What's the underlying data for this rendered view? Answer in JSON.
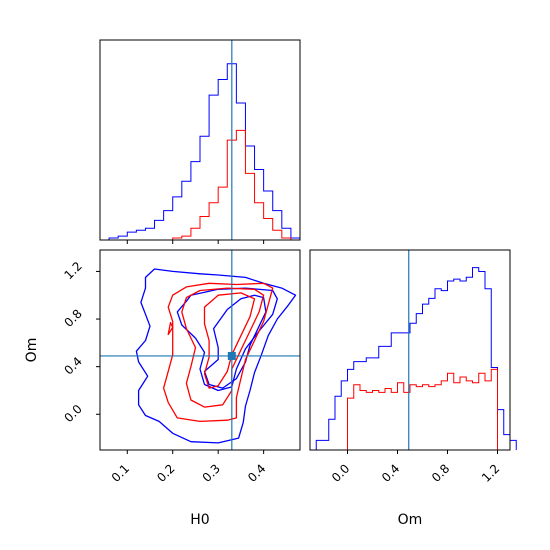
{
  "chart_data": {
    "type": "corner",
    "colors": {
      "blue": "#0000ff",
      "red": "#ff0000",
      "truth": "#1f77b4"
    },
    "params": [
      "H0",
      "Om"
    ],
    "axis_labels": {
      "x_bottom_left": "H0",
      "x_bottom_right": "Om",
      "y_left": "Om"
    },
    "truth": {
      "H0": 0.33,
      "Om": 0.49
    },
    "panels": {
      "h0_hist": {
        "xlim": [
          0.04,
          0.48
        ],
        "ticks": [
          0.1,
          0.2,
          0.3,
          0.4
        ],
        "bins": [
          0.05,
          0.07,
          0.09,
          0.11,
          0.13,
          0.15,
          0.17,
          0.19,
          0.21,
          0.23,
          0.25,
          0.27,
          0.29,
          0.31,
          0.33,
          0.35,
          0.37,
          0.39,
          0.41,
          0.43,
          0.45,
          0.47
        ],
        "series": [
          {
            "name": "",
            "color": "blue",
            "values": [
              0,
              0.01,
              0.02,
              0.04,
              0.05,
              0.06,
              0.1,
              0.15,
              0.22,
              0.3,
              0.4,
              0.53,
              0.74,
              0.82,
              0.9,
              0.7,
              0.48,
              0.36,
              0.25,
              0.15,
              0.06,
              0.01
            ]
          },
          {
            "name": "",
            "color": "red",
            "values": [
              0,
              0,
              0,
              0,
              0,
              0,
              0,
              0,
              0.01,
              0.02,
              0.06,
              0.12,
              0.19,
              0.27,
              0.51,
              0.56,
              0.34,
              0.19,
              0.11,
              0.05,
              0.01,
              0
            ]
          }
        ]
      },
      "om_hist": {
        "xlim": [
          -0.3,
          1.3
        ],
        "ticks": [
          0.0,
          0.4,
          0.8,
          1.2
        ],
        "tick_labels": [
          "0.0",
          "0.4",
          "0.8",
          "1.2"
        ],
        "bin_width": 0.05,
        "series": [
          {
            "name": "",
            "color": "blue",
            "start": -0.25,
            "values": [
              0.05,
              0.05,
              0.16,
              0.28,
              0.36,
              0.42,
              0.46,
              0.46,
              0.48,
              0.48,
              0.54,
              0.54,
              0.61,
              0.61,
              0.61,
              0.66,
              0.71,
              0.76,
              0.79,
              0.84,
              0.83,
              0.88,
              0.89,
              0.88,
              0.9,
              0.95,
              0.93,
              0.84,
              0.43,
              0.21,
              0.08,
              0.05
            ]
          },
          {
            "name": "",
            "color": "red",
            "start": 0.0,
            "values": [
              0.27,
              0.34,
              0.31,
              0.3,
              0.31,
              0.3,
              0.32,
              0.3,
              0.35,
              0.3,
              0.34,
              0.33,
              0.34,
              0.33,
              0.34,
              0.36,
              0.4,
              0.35,
              0.38,
              0.36,
              0.35,
              0.4,
              0.36,
              0.42
            ]
          }
        ]
      },
      "contour": {
        "xlim": [
          0.04,
          0.48
        ],
        "ylim": [
          -0.3,
          1.38
        ],
        "xticks": [
          0.1,
          0.2,
          0.3,
          0.4
        ],
        "yticks": [
          0.0,
          0.4,
          0.8,
          1.2
        ],
        "ytick_labels": [
          "0.0",
          "0.4",
          "0.8",
          "1.2"
        ],
        "contours": [
          {
            "color": "blue",
            "points": [
              [
                0.14,
                1.15
              ],
              [
                0.16,
                1.22
              ],
              [
                0.2,
                1.2
              ],
              [
                0.26,
                1.18
              ],
              [
                0.3,
                1.17
              ],
              [
                0.36,
                1.15
              ],
              [
                0.4,
                1.1
              ],
              [
                0.44,
                1.06
              ],
              [
                0.47,
                1.0
              ],
              [
                0.455,
                0.92
              ],
              [
                0.43,
                0.8
              ],
              [
                0.41,
                0.66
              ],
              [
                0.395,
                0.5
              ],
              [
                0.38,
                0.35
              ],
              [
                0.37,
                0.2
              ],
              [
                0.36,
                0.07
              ],
              [
                0.355,
                -0.07
              ],
              [
                0.345,
                -0.2
              ],
              [
                0.3,
                -0.24
              ],
              [
                0.24,
                -0.23
              ],
              [
                0.2,
                -0.16
              ],
              [
                0.17,
                -0.06
              ],
              [
                0.14,
                -0.01
              ],
              [
                0.125,
                0.08
              ],
              [
                0.125,
                0.2
              ],
              [
                0.145,
                0.32
              ],
              [
                0.125,
                0.44
              ],
              [
                0.12,
                0.53
              ],
              [
                0.14,
                0.62
              ],
              [
                0.15,
                0.74
              ],
              [
                0.14,
                0.84
              ],
              [
                0.13,
                0.94
              ],
              [
                0.14,
                1.06
              ],
              [
                0.14,
                1.15
              ]
            ]
          },
          {
            "color": "blue",
            "points": [
              [
                0.24,
                1.0
              ],
              [
                0.3,
                1.05
              ],
              [
                0.36,
                1.06
              ],
              [
                0.42,
                1.04
              ],
              [
                0.43,
                0.97
              ],
              [
                0.42,
                0.84
              ],
              [
                0.39,
                0.7
              ],
              [
                0.36,
                0.55
              ],
              [
                0.34,
                0.38
              ],
              [
                0.33,
                0.23
              ],
              [
                0.3,
                0.2
              ],
              [
                0.27,
                0.25
              ],
              [
                0.26,
                0.38
              ],
              [
                0.27,
                0.52
              ],
              [
                0.25,
                0.64
              ],
              [
                0.22,
                0.75
              ],
              [
                0.21,
                0.86
              ],
              [
                0.23,
                0.95
              ],
              [
                0.24,
                1.0
              ]
            ]
          },
          {
            "color": "blue",
            "points": [
              [
                0.29,
                0.72
              ],
              [
                0.32,
                0.88
              ],
              [
                0.35,
                0.97
              ],
              [
                0.38,
                1.0
              ],
              [
                0.4,
                0.98
              ],
              [
                0.405,
                0.86
              ],
              [
                0.39,
                0.74
              ],
              [
                0.37,
                0.58
              ],
              [
                0.36,
                0.44
              ],
              [
                0.34,
                0.3
              ],
              [
                0.31,
                0.22
              ],
              [
                0.28,
                0.25
              ],
              [
                0.27,
                0.36
              ],
              [
                0.3,
                0.46
              ],
              [
                0.3,
                0.56
              ],
              [
                0.29,
                0.72
              ]
            ]
          },
          {
            "color": "red",
            "points": [
              [
                0.2,
                1.0
              ],
              [
                0.23,
                1.07
              ],
              [
                0.28,
                1.1
              ],
              [
                0.34,
                1.09
              ],
              [
                0.4,
                1.1
              ],
              [
                0.42,
                1.06
              ],
              [
                0.41,
                0.92
              ],
              [
                0.4,
                0.78
              ],
              [
                0.38,
                0.62
              ],
              [
                0.36,
                0.46
              ],
              [
                0.35,
                0.3
              ],
              [
                0.34,
                0.14
              ],
              [
                0.34,
                -0.03
              ],
              [
                0.32,
                -0.05
              ],
              [
                0.26,
                -0.06
              ],
              [
                0.21,
                -0.03
              ],
              [
                0.19,
                0.1
              ],
              [
                0.18,
                0.22
              ],
              [
                0.19,
                0.36
              ],
              [
                0.2,
                0.5
              ],
              [
                0.2,
                0.64
              ],
              [
                0.2,
                0.78
              ],
              [
                0.19,
                0.9
              ],
              [
                0.2,
                1.0
              ]
            ]
          },
          {
            "color": "red",
            "points": [
              [
                0.23,
                0.98
              ],
              [
                0.26,
                1.04
              ],
              [
                0.32,
                1.06
              ],
              [
                0.38,
                1.05
              ],
              [
                0.4,
                1.0
              ],
              [
                0.39,
                0.86
              ],
              [
                0.37,
                0.7
              ],
              [
                0.35,
                0.54
              ],
              [
                0.33,
                0.38
              ],
              [
                0.33,
                0.2
              ],
              [
                0.31,
                0.08
              ],
              [
                0.27,
                0.06
              ],
              [
                0.24,
                0.12
              ],
              [
                0.23,
                0.26
              ],
              [
                0.24,
                0.4
              ],
              [
                0.25,
                0.56
              ],
              [
                0.23,
                0.72
              ],
              [
                0.22,
                0.86
              ],
              [
                0.23,
                0.98
              ]
            ]
          },
          {
            "color": "red",
            "points": [
              [
                0.27,
                0.9
              ],
              [
                0.3,
                1.0
              ],
              [
                0.35,
                1.02
              ],
              [
                0.38,
                0.97
              ],
              [
                0.37,
                0.82
              ],
              [
                0.35,
                0.66
              ],
              [
                0.33,
                0.5
              ],
              [
                0.32,
                0.36
              ],
              [
                0.3,
                0.24
              ],
              [
                0.28,
                0.22
              ],
              [
                0.27,
                0.34
              ],
              [
                0.28,
                0.48
              ],
              [
                0.28,
                0.62
              ],
              [
                0.27,
                0.76
              ],
              [
                0.27,
                0.9
              ]
            ]
          },
          {
            "color": "red",
            "points": [
              [
                0.195,
                0.77
              ],
              [
                0.19,
                0.67
              ],
              [
                0.2,
                0.73
              ],
              [
                0.195,
                0.77
              ]
            ]
          }
        ]
      }
    }
  }
}
